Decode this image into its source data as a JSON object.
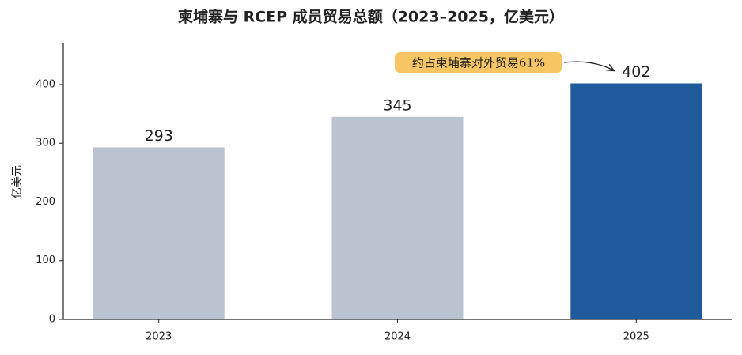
{
  "chart_data": {
    "type": "bar",
    "title": "柬埔寨与 RCEP 成员贸易总额（2023–2025，亿美元）",
    "y_label": "亿美元",
    "categories": [
      "2023",
      "2024",
      "2025"
    ],
    "values": [
      293,
      345,
      402
    ],
    "colors": [
      "#b9c4d0",
      "#b9c4d0",
      "#1f5b9a"
    ],
    "ylim": [
      0,
      470
    ],
    "yticks": [
      0,
      100,
      200,
      300,
      400
    ],
    "grid": false,
    "annotation": {
      "text": "约占柬埔寨对外贸易61%",
      "category": 2
    }
  }
}
